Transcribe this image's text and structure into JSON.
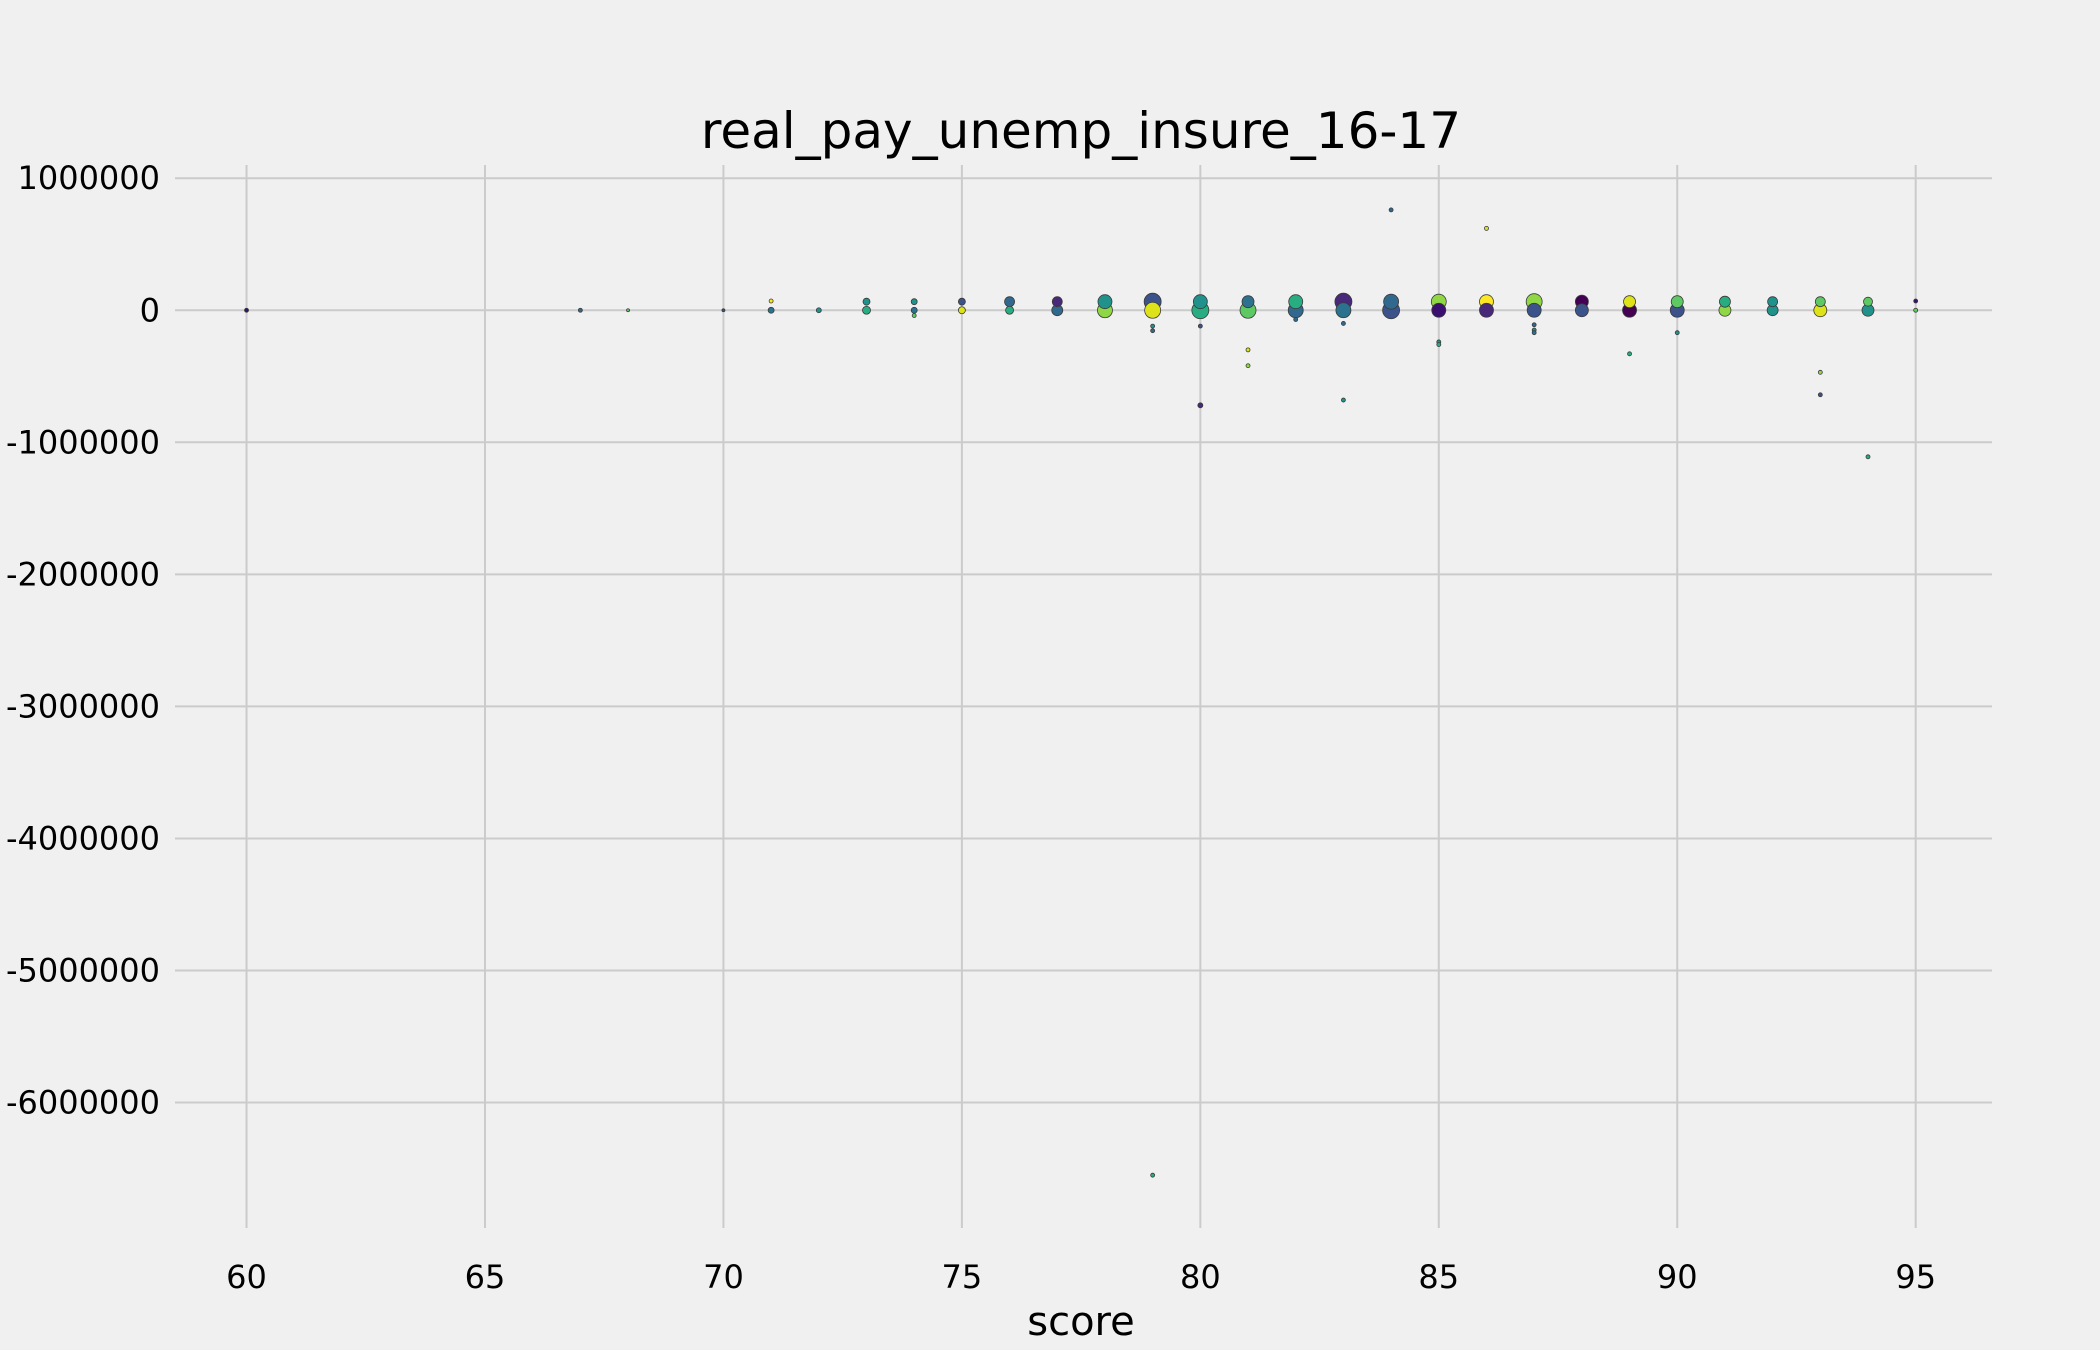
{
  "chart_data": {
    "type": "scatter",
    "title": "real_pay_unemp_insure_16-17",
    "xlabel": "score",
    "ylabel": "",
    "xlim": [
      58.5,
      96.6
    ],
    "ylim": [
      -6950000,
      1100000
    ],
    "x_ticks": [
      60,
      65,
      70,
      75,
      80,
      85,
      90,
      95
    ],
    "y_ticks": [
      1000000,
      0,
      -1000000,
      -2000000,
      -3000000,
      -4000000,
      -5000000,
      -6000000
    ],
    "grid": true,
    "legend": "none",
    "point_color_scale": "viridis",
    "points": [
      {
        "x": 60,
        "y": 0,
        "size": 2,
        "color": "#3b0f70"
      },
      {
        "x": 67,
        "y": 0,
        "size": 2,
        "color": "#31688e"
      },
      {
        "x": 68,
        "y": 0,
        "size": 1.5,
        "color": "#5ec962"
      },
      {
        "x": 70,
        "y": 0,
        "size": 1.5,
        "color": "#3b528b"
      },
      {
        "x": 71,
        "y": 70000,
        "size": 2,
        "color": "#fde725"
      },
      {
        "x": 71,
        "y": 0,
        "size": 3,
        "color": "#2c728e"
      },
      {
        "x": 72,
        "y": 0,
        "size": 2.5,
        "color": "#21918c"
      },
      {
        "x": 73,
        "y": 65000,
        "size": 3.5,
        "color": "#21918c"
      },
      {
        "x": 73,
        "y": 0,
        "size": 4,
        "color": "#27ad81"
      },
      {
        "x": 74,
        "y": 65000,
        "size": 3,
        "color": "#21918c"
      },
      {
        "x": 74,
        "y": 0,
        "size": 3,
        "color": "#2c728e"
      },
      {
        "x": 74,
        "y": -40000,
        "size": 2,
        "color": "#5ec962"
      },
      {
        "x": 75,
        "y": 65000,
        "size": 3.5,
        "color": "#3b528b"
      },
      {
        "x": 75,
        "y": 0,
        "size": 3.5,
        "color": "#dde318"
      },
      {
        "x": 76,
        "y": 65000,
        "size": 5,
        "color": "#31688e"
      },
      {
        "x": 76,
        "y": 0,
        "size": 4,
        "color": "#27ad81"
      },
      {
        "x": 77,
        "y": 65000,
        "size": 5,
        "color": "#482878"
      },
      {
        "x": 77,
        "y": 0,
        "size": 5.5,
        "color": "#31688e"
      },
      {
        "x": 78,
        "y": 65000,
        "size": 7,
        "color": "#21918c"
      },
      {
        "x": 78,
        "y": 0,
        "size": 7.5,
        "color": "#8fd744"
      },
      {
        "x": 79,
        "y": 65000,
        "size": 8.5,
        "color": "#3b528b"
      },
      {
        "x": 79,
        "y": 0,
        "size": 8,
        "color": "#dde318"
      },
      {
        "x": 79,
        "y": -120000,
        "size": 2,
        "color": "#21918c"
      },
      {
        "x": 79,
        "y": -155000,
        "size": 2,
        "color": "#31688e"
      },
      {
        "x": 79,
        "y": -6550000,
        "size": 2,
        "color": "#27ad81"
      },
      {
        "x": 80,
        "y": 65000,
        "size": 7,
        "color": "#21918c"
      },
      {
        "x": 80,
        "y": 0,
        "size": 8.5,
        "color": "#27ad81"
      },
      {
        "x": 80,
        "y": -120000,
        "size": 2,
        "color": "#3b528b"
      },
      {
        "x": 80,
        "y": -720000,
        "size": 2.5,
        "color": "#482878"
      },
      {
        "x": 81,
        "y": 65000,
        "size": 6,
        "color": "#2c728e"
      },
      {
        "x": 81,
        "y": 0,
        "size": 8,
        "color": "#5ec962"
      },
      {
        "x": 81,
        "y": -300000,
        "size": 2,
        "color": "#dde318"
      },
      {
        "x": 81,
        "y": -420000,
        "size": 2,
        "color": "#8fd744"
      },
      {
        "x": 82,
        "y": 65000,
        "size": 7,
        "color": "#27ad81"
      },
      {
        "x": 82,
        "y": 0,
        "size": 7.5,
        "color": "#31688e"
      },
      {
        "x": 82,
        "y": -70000,
        "size": 2,
        "color": "#31688e"
      },
      {
        "x": 83,
        "y": 65000,
        "size": 8.5,
        "color": "#482878"
      },
      {
        "x": 83,
        "y": 0,
        "size": 7.5,
        "color": "#2c728e"
      },
      {
        "x": 83,
        "y": -100000,
        "size": 2,
        "color": "#31688e"
      },
      {
        "x": 83,
        "y": -680000,
        "size": 2,
        "color": "#21918c"
      },
      {
        "x": 84,
        "y": 760000,
        "size": 2,
        "color": "#31688e"
      },
      {
        "x": 84,
        "y": 65000,
        "size": 7.5,
        "color": "#31688e"
      },
      {
        "x": 84,
        "y": 0,
        "size": 8.5,
        "color": "#3b528b"
      },
      {
        "x": 85,
        "y": 65000,
        "size": 7.5,
        "color": "#8fd744"
      },
      {
        "x": 85,
        "y": 0,
        "size": 7,
        "color": "#3b0f70"
      },
      {
        "x": 85,
        "y": -240000,
        "size": 2,
        "color": "#21918c"
      },
      {
        "x": 85,
        "y": -260000,
        "size": 2,
        "color": "#27ad81"
      },
      {
        "x": 86,
        "y": 620000,
        "size": 2,
        "color": "#dde318"
      },
      {
        "x": 86,
        "y": 65000,
        "size": 7,
        "color": "#fde725"
      },
      {
        "x": 86,
        "y": 0,
        "size": 7,
        "color": "#482878"
      },
      {
        "x": 87,
        "y": 65000,
        "size": 8,
        "color": "#8fd744"
      },
      {
        "x": 87,
        "y": 0,
        "size": 7,
        "color": "#3b528b"
      },
      {
        "x": 87,
        "y": -110000,
        "size": 2,
        "color": "#31688e"
      },
      {
        "x": 87,
        "y": -150000,
        "size": 2,
        "color": "#21918c"
      },
      {
        "x": 87,
        "y": -170000,
        "size": 2,
        "color": "#2c728e"
      },
      {
        "x": 88,
        "y": 65000,
        "size": 6.5,
        "color": "#440154"
      },
      {
        "x": 88,
        "y": 0,
        "size": 6.5,
        "color": "#3b528b"
      },
      {
        "x": 89,
        "y": 65000,
        "size": 6,
        "color": "#dde318"
      },
      {
        "x": 89,
        "y": 0,
        "size": 7,
        "color": "#440154"
      },
      {
        "x": 89,
        "y": -330000,
        "size": 2,
        "color": "#27ad81"
      },
      {
        "x": 90,
        "y": 65000,
        "size": 6,
        "color": "#5ec962"
      },
      {
        "x": 90,
        "y": 0,
        "size": 7,
        "color": "#3b528b"
      },
      {
        "x": 90,
        "y": -170000,
        "size": 2,
        "color": "#21918c"
      },
      {
        "x": 91,
        "y": 65000,
        "size": 5.5,
        "color": "#27ad81"
      },
      {
        "x": 91,
        "y": 0,
        "size": 6,
        "color": "#8fd744"
      },
      {
        "x": 92,
        "y": 65000,
        "size": 5,
        "color": "#21918c"
      },
      {
        "x": 92,
        "y": 0,
        "size": 5.5,
        "color": "#21918c"
      },
      {
        "x": 93,
        "y": 65000,
        "size": 5,
        "color": "#5ec962"
      },
      {
        "x": 93,
        "y": 0,
        "size": 6.5,
        "color": "#dde318"
      },
      {
        "x": 93,
        "y": -470000,
        "size": 2,
        "color": "#8fd744"
      },
      {
        "x": 93,
        "y": -640000,
        "size": 2,
        "color": "#3b528b"
      },
      {
        "x": 94,
        "y": 65000,
        "size": 4.5,
        "color": "#5ec962"
      },
      {
        "x": 94,
        "y": 0,
        "size": 6,
        "color": "#21918c"
      },
      {
        "x": 94,
        "y": -1110000,
        "size": 2,
        "color": "#27ad81"
      },
      {
        "x": 95,
        "y": 70000,
        "size": 2,
        "color": "#3b0f70"
      },
      {
        "x": 95,
        "y": 0,
        "size": 2,
        "color": "#5ec962"
      }
    ]
  }
}
